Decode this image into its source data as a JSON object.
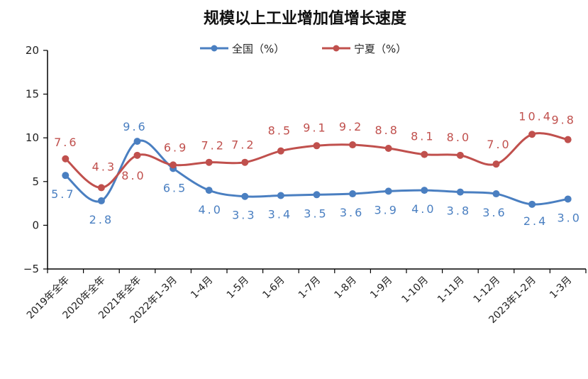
{
  "chart_data": {
    "type": "line",
    "title": "规模以上工业增加值增长速度",
    "categories": [
      "2019年全年",
      "2020年全年",
      "2021年全年",
      "2022年1-3月",
      "1-4月",
      "1-5月",
      "1-6月",
      "1-7月",
      "1-8月",
      "1-9月",
      "1-10月",
      "1-11月",
      "1-12月",
      "2023年1-2月",
      "1-3月"
    ],
    "series": [
      {
        "name": "全国（%）",
        "color": "#4a7fc1",
        "values": [
          5.7,
          2.8,
          9.6,
          6.5,
          4.0,
          3.3,
          3.4,
          3.5,
          3.6,
          3.9,
          4.0,
          3.8,
          3.6,
          2.4,
          3.0
        ],
        "labels": [
          "5.7",
          "2.8",
          "9.6",
          "6.5",
          "4.0",
          "3.3",
          "3.4",
          "3.5",
          "3.6",
          "3.9",
          "4.0",
          "3.8",
          "3.6",
          "2.4",
          "3.0"
        ]
      },
      {
        "name": "宁夏（%）",
        "color": "#c0504d",
        "values": [
          7.6,
          4.3,
          8.0,
          6.9,
          7.2,
          7.2,
          8.5,
          9.1,
          9.2,
          8.8,
          8.1,
          8.0,
          7.0,
          10.4,
          9.8
        ],
        "labels": [
          "7.6",
          "4.3",
          "8.0",
          "6.9",
          "7.2",
          "7.2",
          "8.5",
          "9.1",
          "9.2",
          "8.8",
          "8.1",
          "8.0",
          "7.0",
          "10.4",
          "9.8"
        ]
      }
    ],
    "ylim": [
      -5,
      20
    ],
    "yticks": [
      "20",
      "15",
      "10",
      "5",
      "0",
      "−5"
    ],
    "ytick_values": [
      20,
      15,
      10,
      5,
      0,
      -5
    ],
    "grid": false,
    "legend": "top-center"
  }
}
